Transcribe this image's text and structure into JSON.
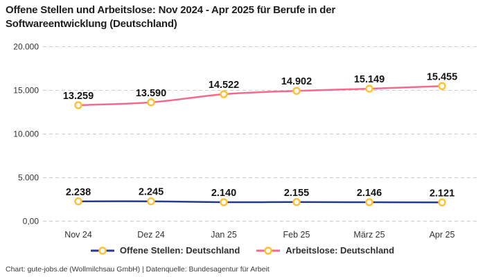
{
  "title": "Offene Stellen und Arbeitslose: Nov 2024 - Apr 2025 für Berufe in der Softwareentwicklung (Deutschland)",
  "footer": "Chart: gute-jobs.de (Wollmilchsau GmbH) | Datenquelle: Bundesagentur für Arbeit",
  "colors": {
    "open_positions": "#24398f",
    "unemployed": "#f5698b",
    "marker_ring": "#fdc231",
    "marker_fill": "#ffffff",
    "grid": "#cbcbcb",
    "axis_text": "#333333",
    "label_text": "#141414"
  },
  "chart_data": {
    "type": "line",
    "title": "Offene Stellen und Arbeitslose: Nov 2024 - Apr 2025 für Berufe in der Softwareentwicklung (Deutschland)",
    "x": [
      "Nov 24",
      "Dez 24",
      "Jan 25",
      "Feb 25",
      "März 25",
      "Apr 25"
    ],
    "series": [
      {
        "name": "Offene Stellen: Deutschland",
        "values": [
          2238,
          2245,
          2140,
          2155,
          2146,
          2121
        ],
        "value_labels": [
          "2.238",
          "2.245",
          "2.140",
          "2.155",
          "2.146",
          "2.121"
        ],
        "color_key": "open_positions"
      },
      {
        "name": "Arbeitslose: Deutschland",
        "values": [
          13259,
          13590,
          14522,
          14902,
          15149,
          15455
        ],
        "value_labels": [
          "13.259",
          "13.590",
          "14.522",
          "14.902",
          "15.149",
          "15.455"
        ],
        "color_key": "unemployed"
      }
    ],
    "ylim": [
      0,
      20000
    ],
    "yticks": [
      {
        "value": 0,
        "label": "0,00"
      },
      {
        "value": 5000,
        "label": "5.000"
      },
      {
        "value": 10000,
        "label": "10.000"
      },
      {
        "value": 15000,
        "label": "15.000"
      },
      {
        "value": 20000,
        "label": "20.000"
      }
    ],
    "grid": "dashed-horizontal",
    "legend_position": "bottom"
  },
  "legend": {
    "items": [
      {
        "label": "Offene Stellen: Deutschland",
        "color_key": "open_positions"
      },
      {
        "label": "Arbeitslose: Deutschland",
        "color_key": "unemployed"
      }
    ]
  }
}
